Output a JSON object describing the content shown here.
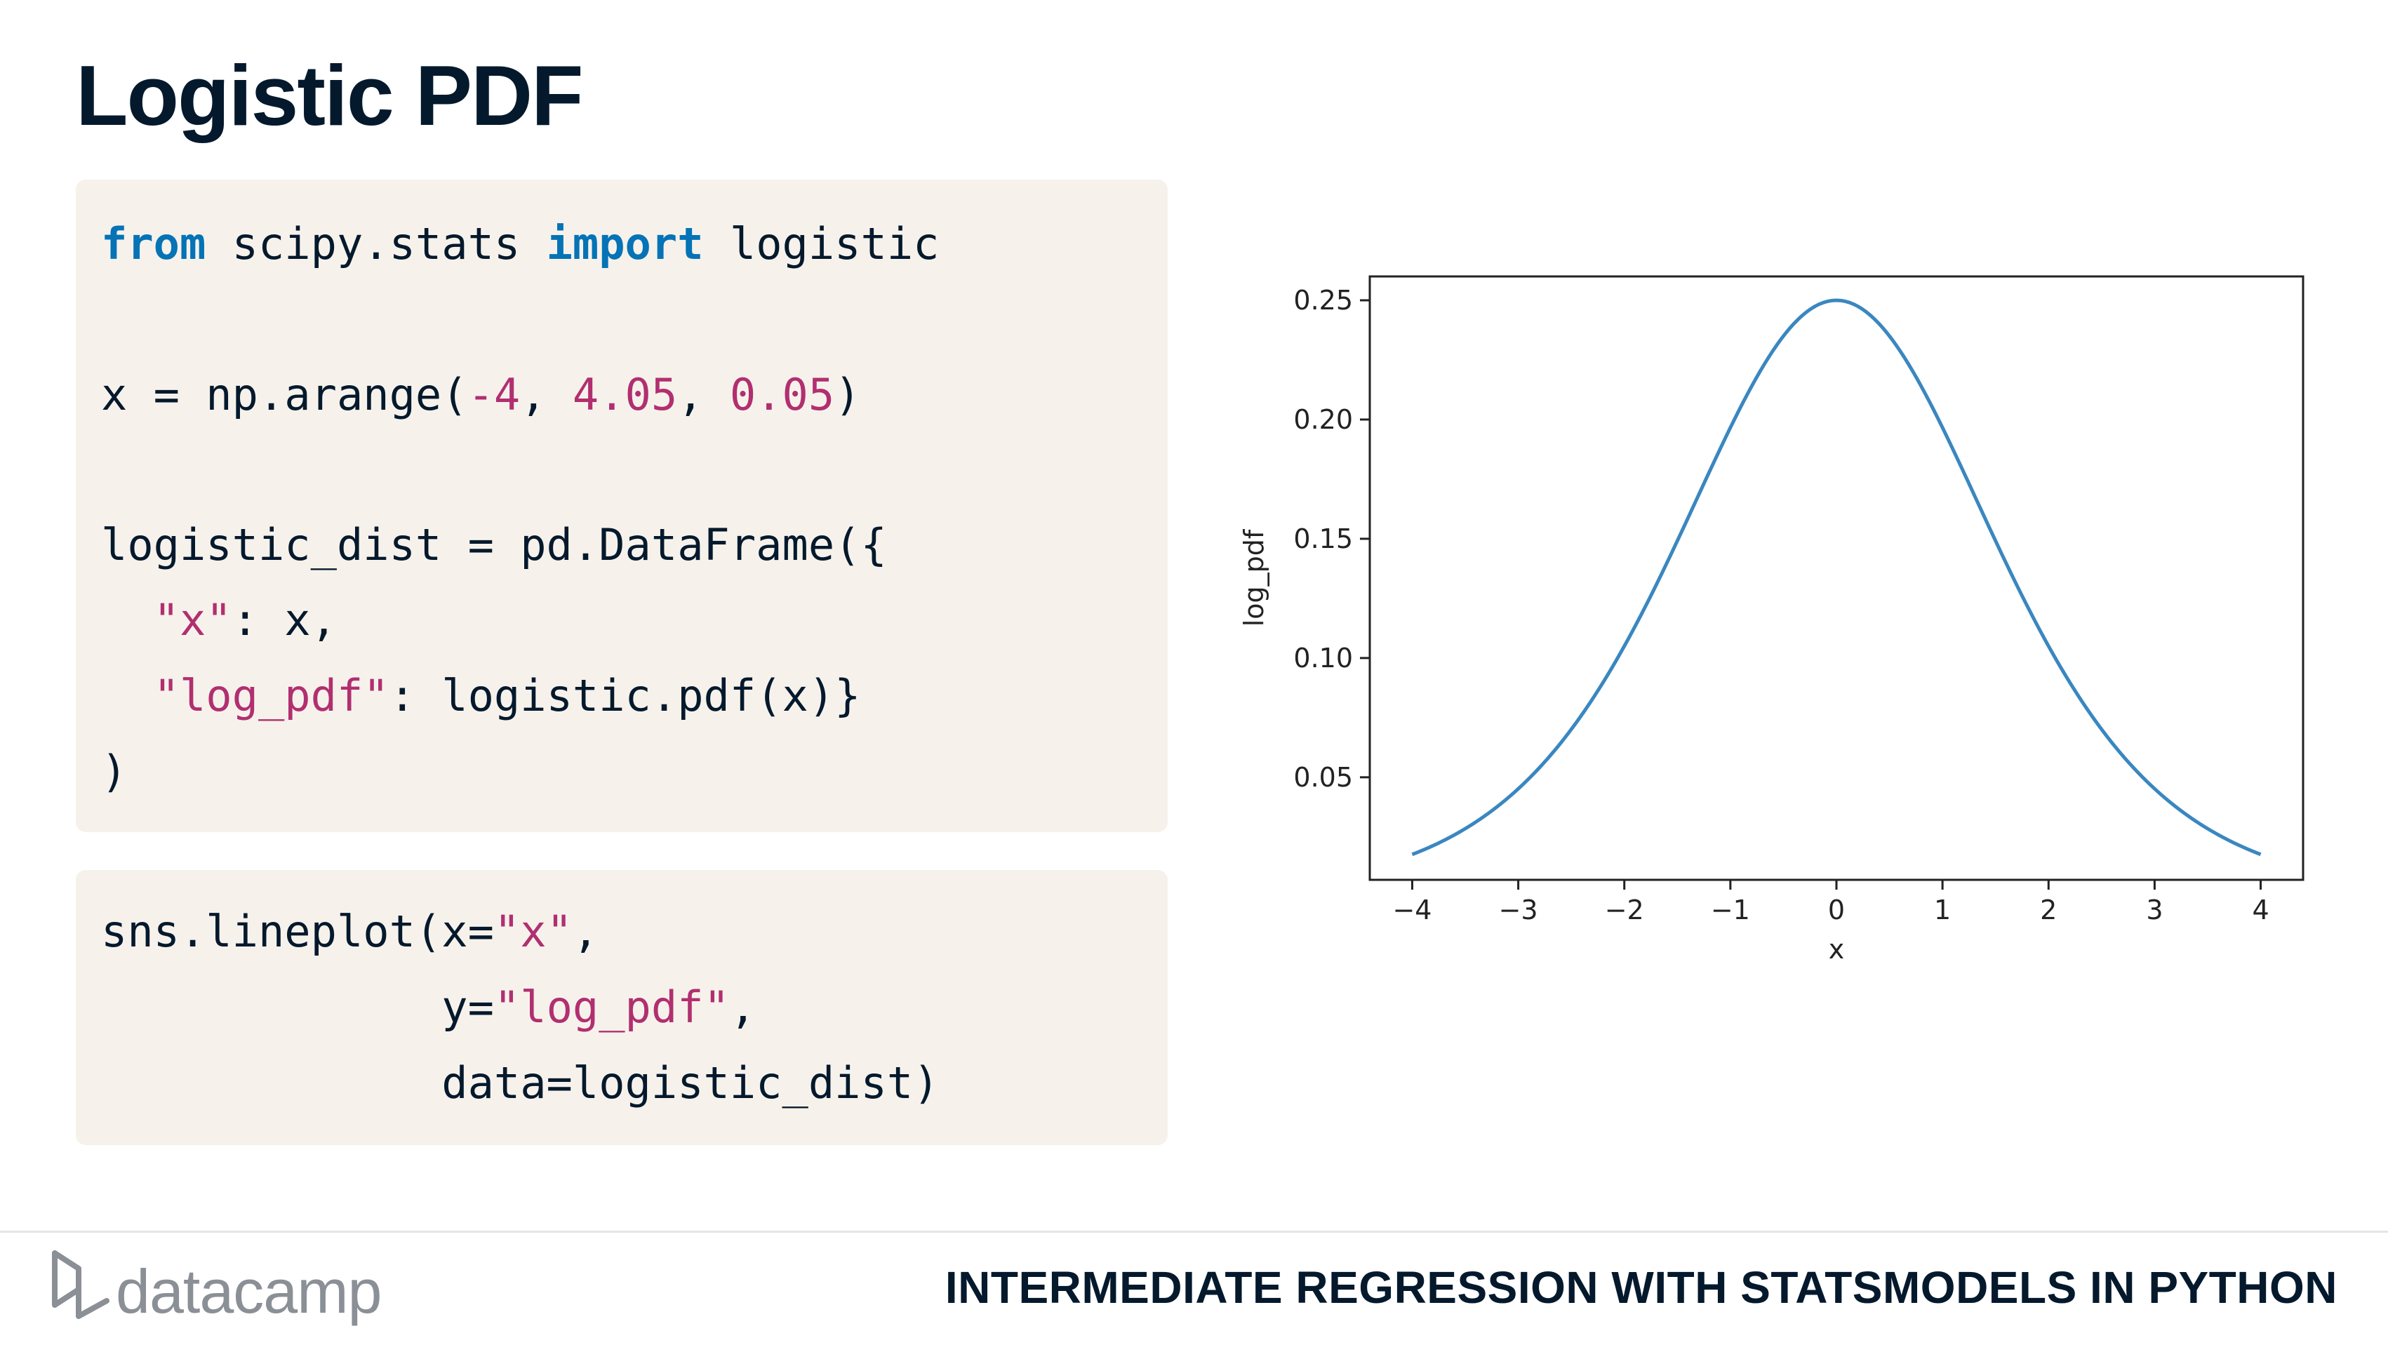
{
  "slide": {
    "title": "Logistic PDF",
    "course": "INTERMEDIATE REGRESSION WITH STATSMODELS IN PYTHON",
    "brand": "datacamp"
  },
  "code_block_1": {
    "l1": {
      "kw1": "from",
      "t1": " scipy.stats ",
      "kw2": "import",
      "t2": " logistic"
    },
    "l2": {
      "t1": "x = np.arange(",
      "n1": "-4",
      "t2": ", ",
      "n2": "4.05",
      "t3": ", ",
      "n3": "0.05",
      "t4": ")"
    },
    "l3": {
      "t1": "logistic_dist = pd.DataFrame({"
    },
    "l4": {
      "pad": "  ",
      "s1": "\"x\"",
      "t1": ": x,"
    },
    "l5": {
      "pad": "  ",
      "s1": "\"log_pdf\"",
      "t1": ": logistic.pdf(x)}"
    },
    "l6": {
      "t1": ")"
    }
  },
  "code_block_2": {
    "l1": {
      "t1": "sns.lineplot(x=",
      "s1": "\"x\"",
      "t2": ","
    },
    "l2": {
      "pad": "             y=",
      "s1": "\"log_pdf\"",
      "t1": ","
    },
    "l3": {
      "t1": "             data=logistic_dist)"
    }
  },
  "chart_data": {
    "type": "line",
    "xlabel": "x",
    "ylabel": "log_pdf",
    "xlim": [
      -4.4,
      4.4
    ],
    "ylim": [
      0.007,
      0.26
    ],
    "xticks": [
      -4,
      -3,
      -2,
      -1,
      0,
      1,
      2,
      3,
      4
    ],
    "xtick_labels": [
      "−4",
      "−3",
      "−2",
      "−1",
      "0",
      "1",
      "2",
      "3",
      "4"
    ],
    "yticks": [
      0.05,
      0.1,
      0.15,
      0.2,
      0.25
    ],
    "ytick_labels": [
      "0.05",
      "0.10",
      "0.15",
      "0.20",
      "0.25"
    ],
    "series": [
      {
        "color": "#3a87c0",
        "x": [
          -4,
          -3.5,
          -3,
          -2.5,
          -2,
          -1.5,
          -1,
          -0.5,
          0,
          0.5,
          1,
          1.5,
          2,
          2.5,
          3,
          3.5,
          4
        ],
        "y": [
          0.0177,
          0.0285,
          0.0452,
          0.0701,
          0.105,
          0.149,
          0.197,
          0.235,
          0.25,
          0.235,
          0.197,
          0.149,
          0.105,
          0.0701,
          0.0452,
          0.0285,
          0.0177
        ]
      }
    ]
  }
}
